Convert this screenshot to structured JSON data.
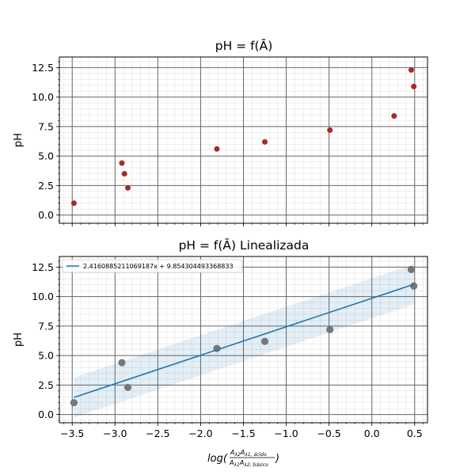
{
  "chart_data": [
    {
      "type": "scatter",
      "title": "pH = f(Ā)",
      "ylabel": "pH",
      "xlabel": "",
      "xlim": [
        -3.65,
        0.65
      ],
      "ylim": [
        -0.7,
        13.4
      ],
      "xticks": [
        -3.5,
        -3.0,
        -2.5,
        -2.0,
        -1.5,
        -1.0,
        -0.5,
        0.0,
        0.5
      ],
      "yticks": [
        0.0,
        2.5,
        5.0,
        7.5,
        10.0,
        12.5
      ],
      "ytick_labels": [
        "0.0",
        "2.5",
        "5.0",
        "7.5",
        "10.0",
        "12.5"
      ],
      "grid": "major and minor",
      "marker_color": "#a52a2a",
      "series": [
        {
          "x": [
            -3.48,
            -2.92,
            -2.89,
            -2.85,
            -1.81,
            -1.25,
            -0.49,
            0.26,
            0.46,
            0.49
          ],
          "y": [
            1.0,
            4.4,
            3.5,
            2.3,
            5.6,
            6.2,
            7.2,
            8.4,
            12.3,
            10.9
          ]
        }
      ]
    },
    {
      "type": "scatter",
      "title": "pH = f(Ā) Linealizada",
      "ylabel": "pH",
      "xlabel_main": "log(",
      "xlabel_num": "A",
      "xlabel_num_sub": "λ2",
      "xlabel_num2": "A",
      "xlabel_num2_sub": "λ1, ácido",
      "xlabel_den": "A",
      "xlabel_den_sub": "λ1",
      "xlabel_den2": "A",
      "xlabel_den2_sub": "λ2, básico",
      "xlabel_close": ")",
      "xlim": [
        -3.65,
        0.65
      ],
      "ylim": [
        -0.7,
        13.4
      ],
      "xticks": [
        -3.5,
        -3.0,
        -2.5,
        -2.0,
        -1.5,
        -1.0,
        -0.5,
        0.0,
        0.5
      ],
      "xtick_labels": [
        "−3.5",
        "−3.0",
        "−2.5",
        "−2.0",
        "−1.5",
        "−1.0",
        "−0.5",
        "0.0",
        "0.5"
      ],
      "yticks": [
        0.0,
        2.5,
        5.0,
        7.5,
        10.0,
        12.5
      ],
      "ytick_labels": [
        "0.0",
        "2.5",
        "5.0",
        "7.5",
        "10.0",
        "12.5"
      ],
      "grid": "major and minor",
      "legend": "top-left",
      "marker_color": "#777777",
      "line_color": "#1f77b4",
      "band_color": "#1f77b4",
      "fit": {
        "label": "2.4160885211069187x + 9.854304493368833",
        "slope": 2.4160885211069187,
        "intercept": 9.854304493368833,
        "x_range": [
          -3.48,
          0.49
        ],
        "band_halfwidth": 1.7
      },
      "series": [
        {
          "x": [
            -3.48,
            -2.92,
            -2.85,
            -1.81,
            -1.25,
            -0.49,
            0.46,
            0.49
          ],
          "y": [
            1.0,
            4.4,
            2.3,
            5.6,
            6.2,
            7.2,
            12.3,
            10.9
          ]
        }
      ]
    }
  ]
}
